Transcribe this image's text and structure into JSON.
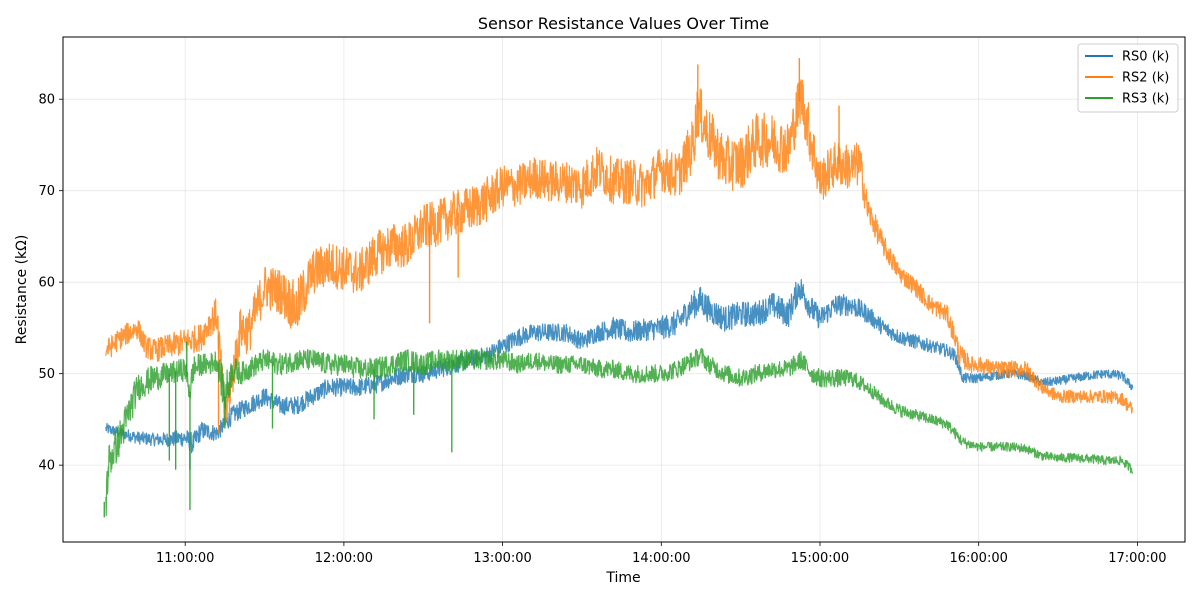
{
  "chart_data": {
    "type": "line",
    "title": "Sensor Resistance Values Over Time",
    "xlabel": "Time",
    "ylabel": "Resistance (kΩ)",
    "x_unit": "hours of day (decimal)",
    "xlim": [
      10.23,
      17.3
    ],
    "ylim": [
      31.6,
      86.8
    ],
    "xticks": [
      11,
      12,
      13,
      14,
      15,
      16,
      17
    ],
    "xtick_labels": [
      "11:00:00",
      "12:00:00",
      "13:00:00",
      "14:00:00",
      "15:00:00",
      "16:00:00",
      "17:00:00"
    ],
    "yticks": [
      40,
      50,
      60,
      70,
      80
    ],
    "ytick_labels": [
      "40",
      "50",
      "60",
      "70",
      "80"
    ],
    "grid": true,
    "legend_position": "top-right",
    "series": [
      {
        "name": "RS0 (k)",
        "color": "#1f77b4",
        "x": [
          10.5,
          10.6,
          10.7,
          10.8,
          10.9,
          11.0,
          11.05,
          11.1,
          11.2,
          11.3,
          11.4,
          11.5,
          11.6,
          11.7,
          11.8,
          11.9,
          12.0,
          12.1,
          12.2,
          12.3,
          12.4,
          12.5,
          12.6,
          12.7,
          12.8,
          12.9,
          13.0,
          13.1,
          13.2,
          13.3,
          13.4,
          13.5,
          13.6,
          13.7,
          13.8,
          13.9,
          14.0,
          14.1,
          14.2,
          14.25,
          14.3,
          14.4,
          14.5,
          14.6,
          14.7,
          14.8,
          14.87,
          14.95,
          15.0,
          15.1,
          15.2,
          15.3,
          15.4,
          15.5,
          15.6,
          15.7,
          15.8,
          15.85,
          15.9,
          16.0,
          16.1,
          16.2,
          16.3,
          16.4,
          16.5,
          16.6,
          16.7,
          16.8,
          16.9,
          16.97
        ],
        "values": [
          44.0,
          43.5,
          43.0,
          42.8,
          42.8,
          43.0,
          42.3,
          43.8,
          43.5,
          45.5,
          46.5,
          47.5,
          46.5,
          46.5,
          47.5,
          48.5,
          48.5,
          48.5,
          48.8,
          49.5,
          50.0,
          50.0,
          50.5,
          51.0,
          51.5,
          52.0,
          53.0,
          54.0,
          54.5,
          54.5,
          54.5,
          53.5,
          54.5,
          55.0,
          54.5,
          54.8,
          55.0,
          55.5,
          57.5,
          58.0,
          57.0,
          56.0,
          56.5,
          56.5,
          57.5,
          56.5,
          59.5,
          57.0,
          56.0,
          57.5,
          57.5,
          56.5,
          55.0,
          54.0,
          53.5,
          53.0,
          52.5,
          52.0,
          49.5,
          49.5,
          49.8,
          50.0,
          49.8,
          49.0,
          49.2,
          49.5,
          49.8,
          50.0,
          49.8,
          48.5
        ],
        "noise": [
          0.6,
          0.6,
          0.7,
          0.7,
          0.8,
          1.0,
          1.2,
          1.0,
          0.9,
          1.0,
          1.0,
          1.0,
          1.0,
          1.0,
          1.0,
          1.0,
          1.0,
          1.0,
          1.0,
          1.0,
          1.0,
          1.0,
          1.0,
          1.0,
          1.0,
          1.0,
          1.0,
          1.0,
          1.0,
          1.0,
          1.0,
          1.0,
          1.0,
          1.2,
          1.2,
          1.2,
          1.3,
          1.4,
          1.5,
          1.6,
          1.5,
          1.4,
          1.4,
          1.4,
          1.4,
          1.5,
          1.5,
          1.4,
          1.2,
          1.2,
          1.2,
          1.0,
          0.9,
          0.8,
          0.8,
          0.7,
          0.7,
          0.7,
          0.6,
          0.5,
          0.5,
          0.5,
          0.5,
          0.5,
          0.5,
          0.5,
          0.5,
          0.5,
          0.5,
          0.5
        ]
      },
      {
        "name": "RS2 (k)",
        "color": "#ff7f0e",
        "x": [
          10.5,
          10.6,
          10.7,
          10.75,
          10.8,
          10.9,
          11.0,
          11.1,
          11.15,
          11.2,
          11.25,
          11.3,
          11.35,
          11.4,
          11.5,
          11.6,
          11.7,
          11.8,
          11.9,
          12.0,
          12.1,
          12.2,
          12.3,
          12.4,
          12.5,
          12.6,
          12.7,
          12.8,
          12.9,
          13.0,
          13.1,
          13.2,
          13.3,
          13.4,
          13.5,
          13.6,
          13.7,
          13.8,
          13.9,
          14.0,
          14.1,
          14.2,
          14.23,
          14.3,
          14.4,
          14.5,
          14.6,
          14.7,
          14.8,
          14.88,
          14.95,
          15.0,
          15.1,
          15.2,
          15.25,
          15.3,
          15.4,
          15.5,
          15.6,
          15.7,
          15.8,
          15.85,
          15.88,
          15.95,
          16.0,
          16.1,
          16.2,
          16.3,
          16.4,
          16.5,
          16.6,
          16.7,
          16.8,
          16.9,
          16.97
        ],
        "values": [
          52.5,
          54.0,
          55.0,
          53.0,
          52.5,
          53.0,
          53.5,
          54.0,
          55.5,
          56.5,
          45.0,
          50.0,
          55.0,
          54.5,
          59.5,
          59.0,
          57.0,
          61.0,
          62.0,
          61.5,
          61.0,
          63.0,
          64.0,
          64.0,
          66.0,
          66.5,
          67.5,
          68.0,
          69.0,
          70.5,
          70.5,
          71.5,
          71.0,
          71.0,
          70.5,
          72.5,
          71.0,
          71.0,
          70.5,
          72.5,
          71.5,
          75.0,
          79.0,
          76.0,
          73.0,
          73.0,
          75.5,
          75.5,
          74.5,
          80.5,
          75.0,
          71.0,
          73.0,
          72.5,
          73.0,
          68.0,
          64.0,
          61.0,
          59.5,
          57.5,
          56.5,
          54.0,
          52.0,
          51.0,
          51.0,
          50.5,
          50.5,
          50.5,
          48.5,
          47.5,
          47.5,
          47.5,
          47.5,
          47.3,
          46.0
        ],
        "noise": [
          1.2,
          1.2,
          1.2,
          1.2,
          1.3,
          1.3,
          1.5,
          1.5,
          1.5,
          2.0,
          2.5,
          2.5,
          2.5,
          2.5,
          2.5,
          2.5,
          3.0,
          2.5,
          2.5,
          2.5,
          2.5,
          2.5,
          2.5,
          2.5,
          2.5,
          2.5,
          2.5,
          2.5,
          2.5,
          2.3,
          2.3,
          2.3,
          2.3,
          2.3,
          2.5,
          2.5,
          2.5,
          2.5,
          2.5,
          2.5,
          2.5,
          3.0,
          3.0,
          3.0,
          3.0,
          3.0,
          3.0,
          3.0,
          3.0,
          3.0,
          3.0,
          2.5,
          2.5,
          2.5,
          2.5,
          1.5,
          1.2,
          1.0,
          1.0,
          1.0,
          1.0,
          1.2,
          1.2,
          0.9,
          0.9,
          0.9,
          0.9,
          0.9,
          0.8,
          0.7,
          0.7,
          0.7,
          0.7,
          0.7,
          0.8
        ]
      },
      {
        "name": "RS3 (k)",
        "color": "#2ca02c",
        "x": [
          10.5,
          10.52,
          10.55,
          10.6,
          10.65,
          10.7,
          10.75,
          10.8,
          10.9,
          11.0,
          11.03,
          11.05,
          11.1,
          11.15,
          11.2,
          11.25,
          11.3,
          11.35,
          11.4,
          11.5,
          11.6,
          11.7,
          11.8,
          11.9,
          12.0,
          12.1,
          12.2,
          12.3,
          12.4,
          12.5,
          12.6,
          12.7,
          12.8,
          12.9,
          13.0,
          13.1,
          13.2,
          13.3,
          13.4,
          13.5,
          13.6,
          13.7,
          13.8,
          13.9,
          14.0,
          14.1,
          14.2,
          14.25,
          14.3,
          14.4,
          14.5,
          14.6,
          14.7,
          14.8,
          14.88,
          14.95,
          15.0,
          15.1,
          15.2,
          15.3,
          15.4,
          15.5,
          15.6,
          15.7,
          15.8,
          15.85,
          15.9,
          16.0,
          16.1,
          16.2,
          16.3,
          16.4,
          16.5,
          16.6,
          16.7,
          16.8,
          16.9,
          16.97
        ],
        "values": [
          36.0,
          40.5,
          41.5,
          43.5,
          46.0,
          48.5,
          49.0,
          49.5,
          50.0,
          50.5,
          48.0,
          50.5,
          51.0,
          51.0,
          51.5,
          47.5,
          50.5,
          50.0,
          50.5,
          51.5,
          51.0,
          51.5,
          51.5,
          51.0,
          51.0,
          50.5,
          50.5,
          51.0,
          51.5,
          51.0,
          51.5,
          51.5,
          51.5,
          51.5,
          51.5,
          51.0,
          51.5,
          51.0,
          51.0,
          51.0,
          50.5,
          50.5,
          50.0,
          50.0,
          50.0,
          50.5,
          51.5,
          52.0,
          51.0,
          50.0,
          49.5,
          50.0,
          50.5,
          50.5,
          51.5,
          50.0,
          49.5,
          49.5,
          49.5,
          48.5,
          47.0,
          46.0,
          45.5,
          45.0,
          44.5,
          43.5,
          42.5,
          42.0,
          42.0,
          42.0,
          41.8,
          41.0,
          40.8,
          40.8,
          40.7,
          40.5,
          40.5,
          39.5
        ],
        "noise": [
          2.5,
          2.0,
          2.0,
          2.0,
          2.0,
          1.5,
          1.5,
          1.5,
          1.2,
          1.3,
          1.5,
          1.5,
          1.2,
          1.2,
          1.2,
          2.5,
          1.5,
          1.2,
          1.2,
          1.2,
          1.2,
          1.2,
          1.2,
          1.2,
          1.2,
          1.2,
          1.2,
          1.2,
          1.2,
          1.2,
          1.2,
          1.2,
          1.2,
          1.1,
          1.1,
          1.0,
          1.0,
          1.0,
          1.0,
          1.0,
          1.0,
          1.0,
          1.0,
          1.0,
          1.0,
          1.0,
          1.0,
          1.0,
          1.0,
          1.0,
          1.0,
          1.0,
          1.0,
          1.0,
          1.0,
          1.0,
          1.0,
          1.0,
          0.9,
          0.8,
          0.7,
          0.7,
          0.6,
          0.6,
          0.6,
          0.6,
          0.6,
          0.5,
          0.5,
          0.5,
          0.5,
          0.5,
          0.5,
          0.5,
          0.5,
          0.5,
          0.5,
          0.5
        ]
      }
    ],
    "spikes": [
      {
        "series": "RS3 (k)",
        "x": 10.49,
        "value": 34.3
      },
      {
        "series": "RS3 (k)",
        "x": 10.9,
        "value": 40.5
      },
      {
        "series": "RS3 (k)",
        "x": 10.94,
        "value": 39.5
      },
      {
        "series": "RS3 (k)",
        "x": 11.03,
        "value": 35.1
      },
      {
        "series": "RS3 (k)",
        "x": 11.01,
        "value": 53.5
      },
      {
        "series": "RS3 (k)",
        "x": 11.25,
        "value": 44.0
      },
      {
        "series": "RS3 (k)",
        "x": 11.55,
        "value": 44.0
      },
      {
        "series": "RS3 (k)",
        "x": 12.19,
        "value": 45.0
      },
      {
        "series": "RS3 (k)",
        "x": 12.44,
        "value": 45.5
      },
      {
        "series": "RS3 (k)",
        "x": 12.68,
        "value": 41.4
      },
      {
        "series": "RS0 (k)",
        "x": 11.03,
        "value": 39.5
      },
      {
        "series": "RS2 (k)",
        "x": 11.21,
        "value": 43.5
      },
      {
        "series": "RS2 (k)",
        "x": 12.54,
        "value": 55.5
      },
      {
        "series": "RS2 (k)",
        "x": 12.72,
        "value": 60.5
      },
      {
        "series": "RS2 (k)",
        "x": 14.23,
        "value": 83.8
      },
      {
        "series": "RS2 (k)",
        "x": 14.87,
        "value": 84.5
      },
      {
        "series": "RS2 (k)",
        "x": 15.12,
        "value": 79.3
      }
    ]
  }
}
